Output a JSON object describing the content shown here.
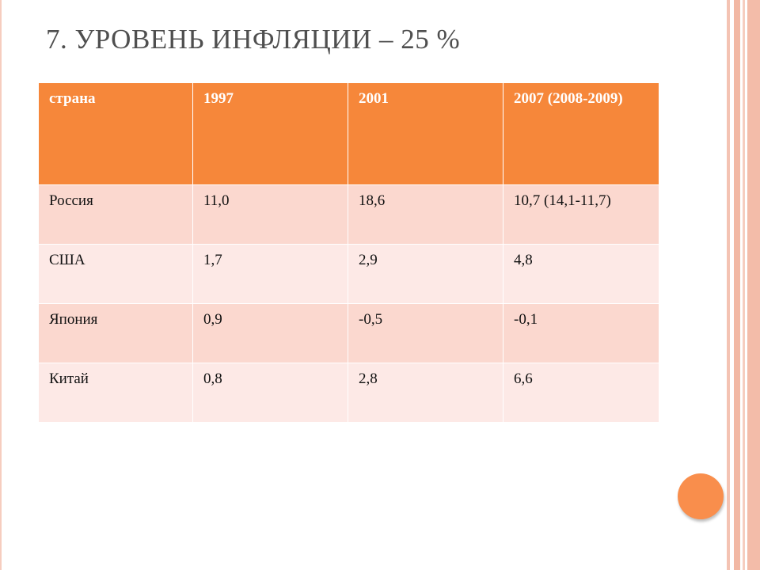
{
  "slide": {
    "title": "7. УРОВЕНЬ ИНФЛЯЦИИ – 25 %"
  },
  "table": {
    "headers": [
      "страна",
      "1997",
      "2001",
      "2007 (2008-2009)"
    ],
    "rows": [
      [
        "Россия",
        "11,0",
        "18,6",
        "10,7 (14,1-11,7)"
      ],
      [
        "США",
        "1,7",
        "2,9",
        "4,8"
      ],
      [
        "Япония",
        "0,9",
        "-0,5",
        "-0,1"
      ],
      [
        "Китай",
        "0,8",
        "2,8",
        "6,6"
      ]
    ]
  },
  "colors": {
    "header_bg": "#f6873a",
    "row_odd_bg": "#fbd8cf",
    "row_even_bg": "#fde9e6",
    "accent_stripes": "#f3bca9",
    "circle": "#f98e4c"
  },
  "decor": {
    "circle_icon": "orange-circle-icon"
  }
}
